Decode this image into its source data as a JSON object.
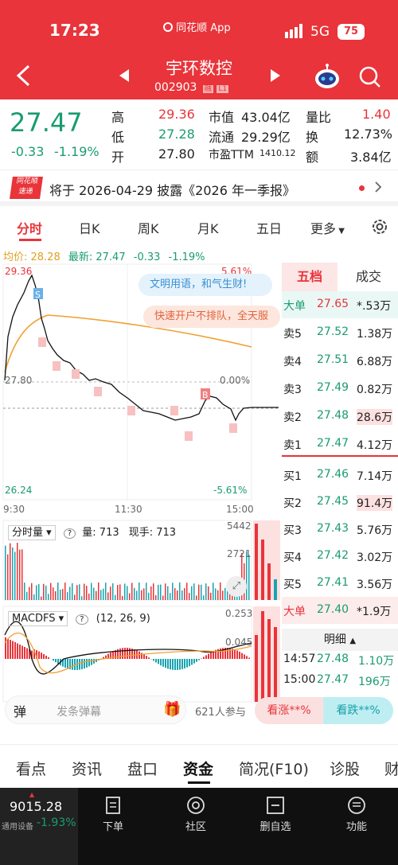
{
  "status": {
    "time": "17:23",
    "app": "同花顺 App",
    "network": "5G",
    "battery": "75"
  },
  "header": {
    "title": "宇环数控",
    "code": "002903",
    "badge_rong": "融",
    "badge_l1": "L1"
  },
  "quote": {
    "price": "27.47",
    "change": "-0.33",
    "change_pct": "-1.19%",
    "high_label": "高",
    "high": "29.36",
    "low_label": "低",
    "low": "27.28",
    "open_label": "开",
    "open": "27.80",
    "mcap_label": "市值",
    "mcap": "43.04亿",
    "float_label": "流通",
    "float": "29.29亿",
    "pe_label": "市盈TTM",
    "pe": "1410.12",
    "vr_label": "量比",
    "vr": "1.40",
    "turnover_label": "换",
    "turnover": "12.73%",
    "amount_label": "额",
    "amount": "3.84亿"
  },
  "notice": {
    "logo_top": "同花顺",
    "logo_bottom": "速递",
    "text": "将于 2026-04-29 披露《2026 年一季报》"
  },
  "tabs": [
    "分时",
    "日K",
    "周K",
    "月K",
    "五日",
    "更多"
  ],
  "chart": {
    "avg_label": "均价: 28.28",
    "latest_label": "最新: 27.47",
    "chg_label": "-0.33",
    "pct_label": "-1.19%",
    "y_top": "29.36",
    "y_mid": "27.80",
    "y_bot": "26.24",
    "pct_top": "5.61%",
    "pct_mid": "0.00%",
    "pct_bot": "-5.61%",
    "times": [
      "9:30",
      "11:30",
      "15:00"
    ],
    "bubble1": "文明用语，和气生财!",
    "bubble2": "快速开户不排队，全天服",
    "vol_title": "分时量",
    "vol_label": "量: 713",
    "cur_label": "现手: 713",
    "vol_max": "5442",
    "vol_mid": "2721",
    "macd_title": "MACDFS",
    "macd_params": "(12, 26, 9)",
    "macd_top": "0.253",
    "macd_mid": "0.045"
  },
  "orderbook": {
    "tab_active": "五档",
    "tab_other": "成交",
    "rows": [
      {
        "label": "大单",
        "price": "27.65",
        "vol": "*.53万"
      },
      {
        "label": "卖5",
        "price": "27.52",
        "vol": "1.38万"
      },
      {
        "label": "卖4",
        "price": "27.51",
        "vol": "6.88万"
      },
      {
        "label": "卖3",
        "price": "27.49",
        "vol": "0.82万"
      },
      {
        "label": "卖2",
        "price": "27.48",
        "vol": "28.6万"
      },
      {
        "label": "卖1",
        "price": "27.47",
        "vol": "4.12万"
      },
      {
        "label": "买1",
        "price": "27.46",
        "vol": "7.14万"
      },
      {
        "label": "买2",
        "price": "27.45",
        "vol": "91.4万"
      },
      {
        "label": "买3",
        "price": "27.43",
        "vol": "5.76万"
      },
      {
        "label": "买4",
        "price": "27.42",
        "vol": "3.02万"
      },
      {
        "label": "买5",
        "price": "27.41",
        "vol": "3.56万"
      },
      {
        "label": "大单",
        "price": "27.40",
        "vol": "*1.9万"
      }
    ],
    "detail_label": "明细",
    "trades": [
      {
        "time": "14:57",
        "price": "27.48",
        "vol": "1.10万"
      },
      {
        "time": "15:00",
        "price": "27.47",
        "vol": "196万"
      }
    ]
  },
  "danmu": {
    "icon": "弹",
    "placeholder": "发条弹幕",
    "participants": "621人参与",
    "up_btn": "看涨**%",
    "down_btn": "看跌**%"
  },
  "bottom_tabs": [
    "看点",
    "资讯",
    "盘口",
    "资金",
    "简况(F10)",
    "诊股",
    "财"
  ],
  "navbar": {
    "index_value": "9015.28",
    "index_name": "通用设备",
    "index_pct": "-1.93%",
    "items": [
      "下单",
      "社区",
      "删自选",
      "功能"
    ]
  }
}
